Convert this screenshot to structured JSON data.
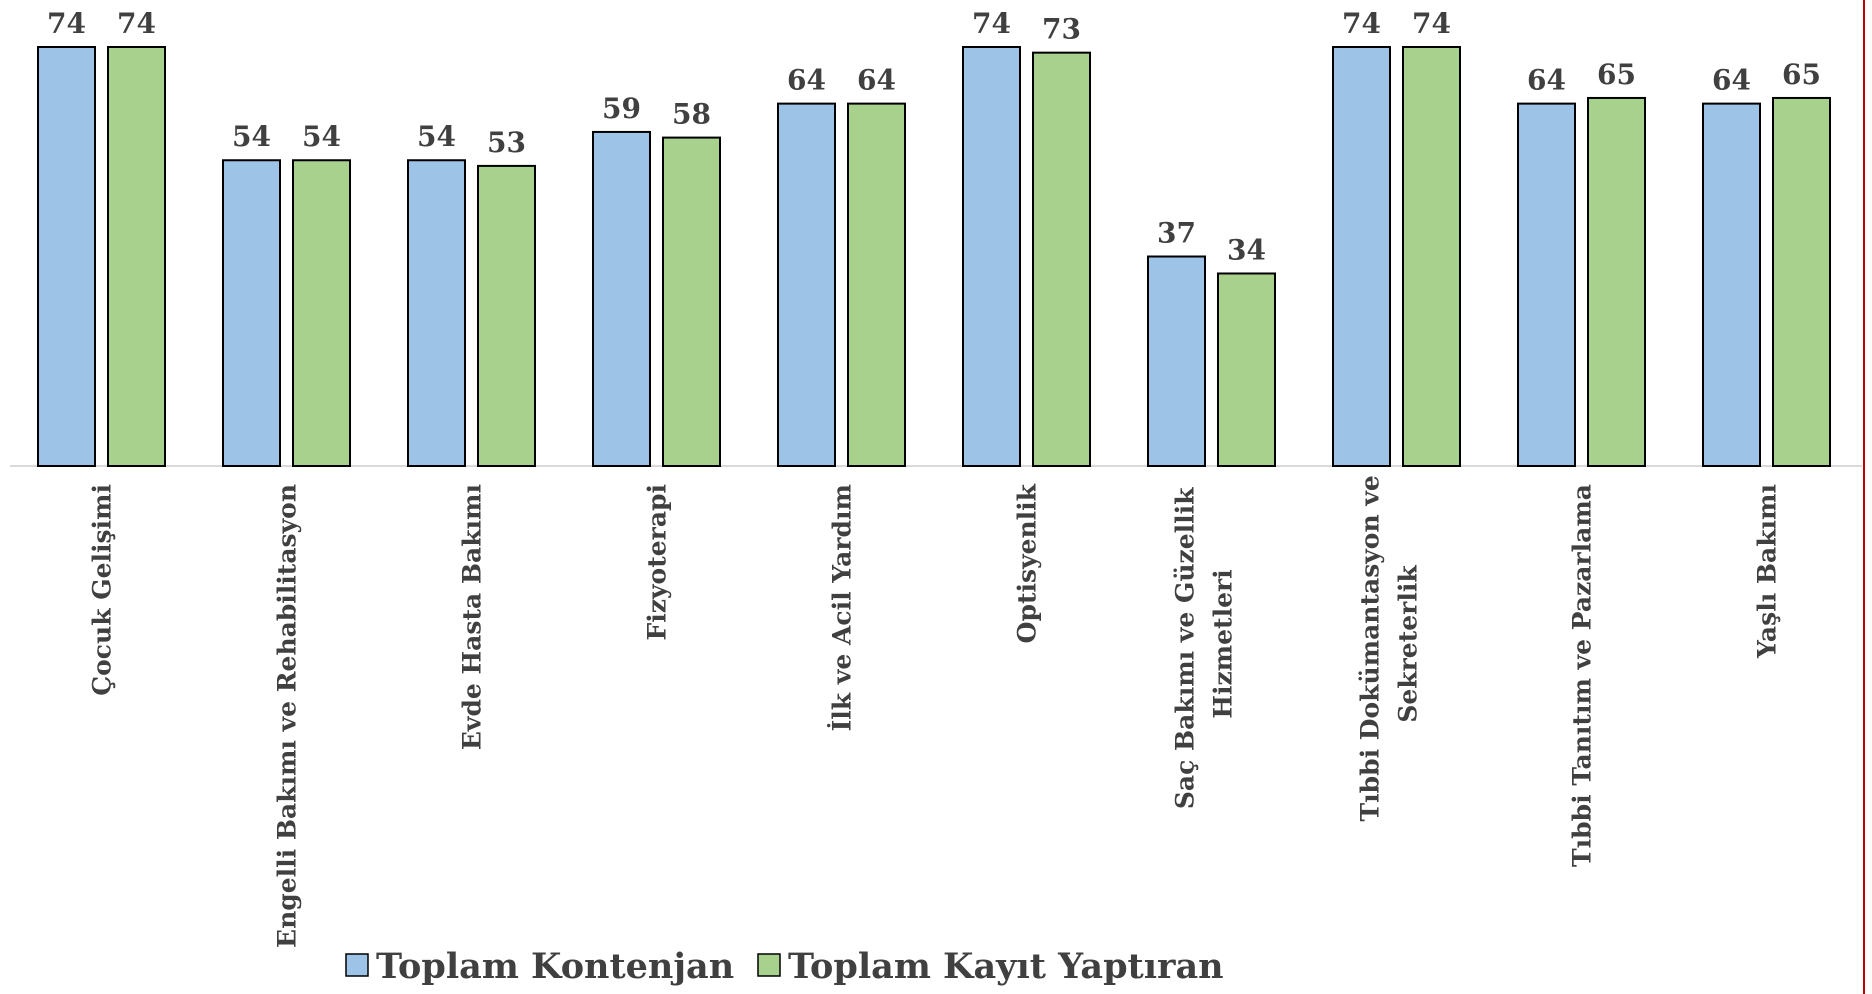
{
  "chart_data": {
    "type": "bar",
    "categories": [
      "Çocuk Gelişimi",
      "Engelli Bakımı ve Rehabilitasyon",
      "Evde Hasta Bakımı",
      "Fizyoterapi",
      "İlk ve Acil Yardım",
      "Optisyenlik",
      "Saç Bakımı ve Güzellik Hizmetleri",
      "Tıbbi Dokümantasyon ve Sekreterlik",
      "Tıbbi Tanıtım ve Pazarlama",
      "Yaşlı Bakımı"
    ],
    "series": [
      {
        "name": "Toplam Kontenjan",
        "color": "#9dc3e6",
        "values": [
          74,
          54,
          54,
          59,
          64,
          74,
          37,
          74,
          64,
          64
        ]
      },
      {
        "name": "Toplam Kayıt Yaptıran",
        "color": "#a9d18e",
        "values": [
          74,
          54,
          53,
          58,
          64,
          73,
          34,
          74,
          65,
          65
        ]
      }
    ],
    "legend": "bottom"
  }
}
